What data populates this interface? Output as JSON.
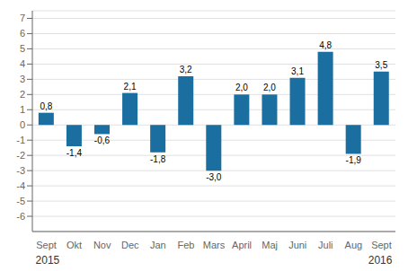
{
  "chart_data": {
    "type": "bar",
    "categories": [
      "Sept",
      "Okt",
      "Nov",
      "Dec",
      "Jan",
      "Feb",
      "Mars",
      "April",
      "Maj",
      "Juni",
      "Juli",
      "Aug",
      "Sept"
    ],
    "values": [
      0.8,
      -1.4,
      -0.6,
      2.1,
      -1.8,
      3.2,
      -3.0,
      2.0,
      2.0,
      3.1,
      4.8,
      -1.9,
      3.5
    ],
    "value_labels": [
      "0,8",
      "-1,4",
      "-0,6",
      "2,1",
      "-1,8",
      "3,2",
      "-3,0",
      "2,0",
      "2,0",
      "3,1",
      "4,8",
      "-1,9",
      "3,5"
    ],
    "data_labels": true,
    "color": "#1a6ea0",
    "ylim": [
      -7,
      7.5
    ],
    "yticks": [
      -6,
      -5,
      -4,
      -3,
      -2,
      -1,
      0,
      1,
      2,
      3,
      4,
      5,
      6,
      7
    ],
    "grid": true,
    "annotations": [
      "2015",
      "2016"
    ]
  }
}
